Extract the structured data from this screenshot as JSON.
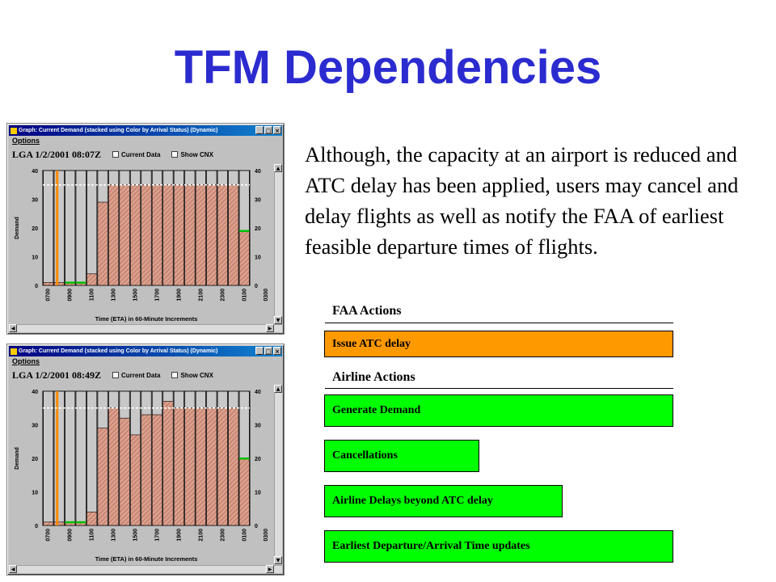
{
  "slide": {
    "title": "TFM Dependencies",
    "paragraph": "Although, the capacity at an airport is reduced and ATC delay has been applied, users may cancel and delay flights as well as notify the FAA of earliest feasible departure times of flights."
  },
  "windows": [
    {
      "window_title": "Graph: Current Demand (stacked using Color by Arrival Status) (Dynamic)",
      "menu_label": "Options",
      "airport_label": "LGA  1/2/2001  08:07Z",
      "current_data_label": "Current Data",
      "show_cnx_label": "Show CNX",
      "minimize_glyph": "_",
      "maximize_glyph": "□",
      "close_glyph": "×"
    },
    {
      "window_title": "Graph: Current Demand (stacked using Color by Arrival Status) (Dynamic)",
      "menu_label": "Options",
      "airport_label": "LGA  1/2/2001  08:49Z",
      "current_data_label": "Current Data",
      "show_cnx_label": "Show CNX",
      "minimize_glyph": "_",
      "maximize_glyph": "□",
      "close_glyph": "×"
    }
  ],
  "chart_data": [
    {
      "type": "bar",
      "ylabel": "Demand",
      "xlabel": "Time (ETA) in 60-Minute Increments",
      "ylim": [
        0,
        40
      ],
      "yticks": [
        0,
        10,
        20,
        30,
        40
      ],
      "tick_labels": [
        "0700",
        "0900",
        "1100",
        "1300",
        "1500",
        "1700",
        "1900",
        "2100",
        "2300",
        "0100",
        "0300"
      ],
      "capacity_line": 35,
      "cap_total": 40,
      "demand": [
        1,
        1,
        1,
        1,
        4,
        29,
        35,
        35,
        35,
        35,
        35,
        35,
        35,
        35,
        35,
        35,
        35,
        35,
        19
      ],
      "orange_bar": 1,
      "green_bars": [
        2,
        3,
        18
      ],
      "colors": {
        "demand": "#d9a090",
        "hatch": "#b05a3a",
        "empty": "#c8c8c8",
        "orange": "#ff8c00",
        "green": "#00c000",
        "capacity": "#ffffff"
      }
    },
    {
      "type": "bar",
      "ylabel": "Demand",
      "xlabel": "Time (ETA) in 60-Minute Increments",
      "ylim": [
        0,
        40
      ],
      "yticks": [
        0,
        10,
        20,
        30,
        40
      ],
      "tick_labels": [
        "0700",
        "0900",
        "1100",
        "1300",
        "1500",
        "1700",
        "1900",
        "2100",
        "2300",
        "0100",
        "0300"
      ],
      "capacity_line": 35,
      "cap_total": 40,
      "demand": [
        1,
        1,
        1,
        1,
        4,
        29,
        35,
        32,
        27,
        33,
        33,
        37,
        35,
        35,
        35,
        35,
        35,
        35,
        20
      ],
      "orange_bar": 1,
      "green_bars": [
        2,
        3,
        18
      ],
      "colors": {
        "demand": "#d9a090",
        "hatch": "#b05a3a",
        "empty": "#c8c8c8",
        "orange": "#ff8c00",
        "green": "#00c000",
        "capacity": "#ffffff"
      }
    }
  ],
  "actions": {
    "faa_heading": "FAA Actions",
    "airline_heading": "Airline Actions",
    "items": [
      {
        "label": "Issue ATC delay",
        "color": "#ff9900"
      },
      {
        "label": "Generate Demand",
        "color": "#00ff00"
      },
      {
        "label": "Cancellations",
        "color": "#00ff00"
      },
      {
        "label": "Airline Delays beyond ATC delay",
        "color": "#00ff00"
      },
      {
        "label": "Earliest Departure/Arrival Time updates",
        "color": "#00ff00"
      }
    ]
  }
}
